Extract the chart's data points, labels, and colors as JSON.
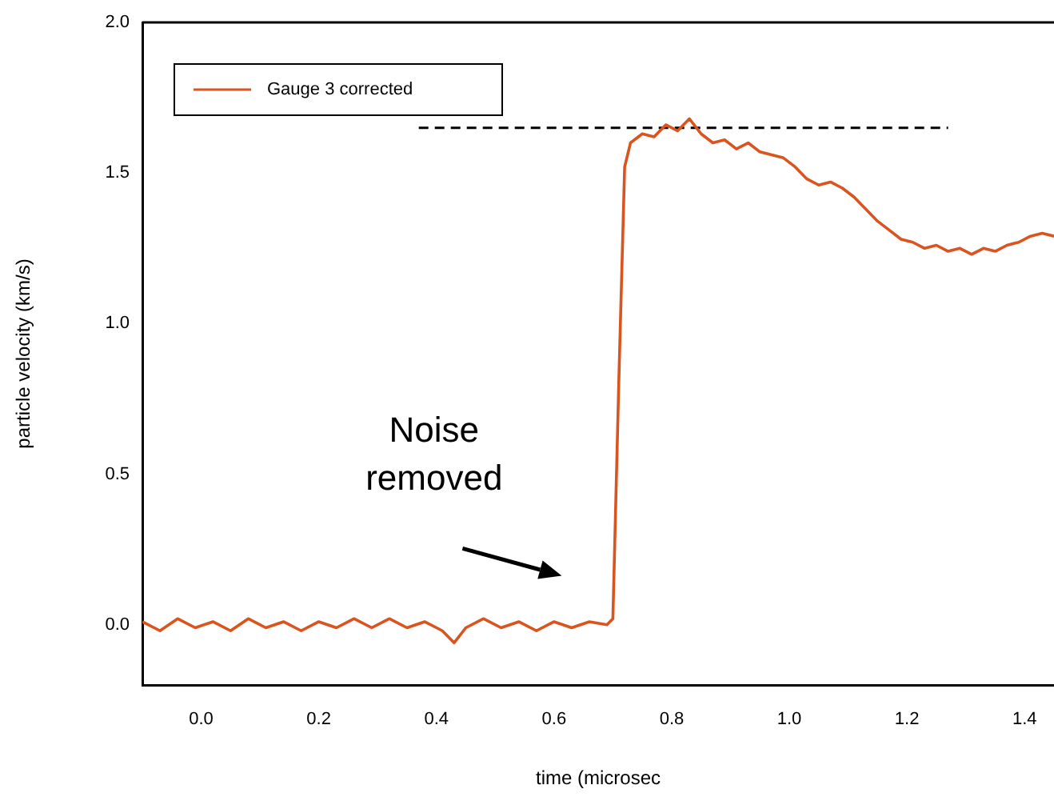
{
  "chart_data": {
    "type": "line",
    "xlabel": "time (microsec",
    "ylabel": "particle velocity (km/s)",
    "xlim": [
      -0.1,
      1.45
    ],
    "ylim": [
      -0.2,
      2.0
    ],
    "xticks": [
      {
        "value": 0,
        "label": "0.0"
      },
      {
        "value": 0.2,
        "label": "0.2"
      },
      {
        "value": 0.4,
        "label": "0.4"
      },
      {
        "value": 0.6,
        "label": "0.6"
      },
      {
        "value": 0.8,
        "label": "0.8"
      },
      {
        "value": 1,
        "label": "1.0"
      },
      {
        "value": 1.2,
        "label": "1.2"
      },
      {
        "value": 1.4,
        "label": "1.4"
      }
    ],
    "yticks": [
      {
        "value": 0,
        "label": "0.0"
      },
      {
        "value": 0.5,
        "label": "0.5"
      },
      {
        "value": 1,
        "label": "1.0"
      },
      {
        "value": 1.5,
        "label": "1.5"
      },
      {
        "value": 2,
        "label": "2.0"
      }
    ],
    "grid": false,
    "legend": "top left",
    "marker": "none",
    "series": [
      {
        "name": "Gauge 3 corrected",
        "color": "#d9541e",
        "line_style": "solid",
        "x": [
          -0.1,
          -0.07,
          -0.04,
          -0.01,
          0.02,
          0.05,
          0.08,
          0.11,
          0.14,
          0.17,
          0.2,
          0.23,
          0.26,
          0.29,
          0.32,
          0.35,
          0.38,
          0.41,
          0.43,
          0.45,
          0.48,
          0.51,
          0.54,
          0.57,
          0.6,
          0.63,
          0.66,
          0.69,
          0.7,
          0.71,
          0.72,
          0.73,
          0.75,
          0.77,
          0.79,
          0.81,
          0.83,
          0.85,
          0.87,
          0.89,
          0.91,
          0.93,
          0.95,
          0.97,
          0.99,
          1.01,
          1.03,
          1.05,
          1.07,
          1.09,
          1.11,
          1.13,
          1.15,
          1.17,
          1.19,
          1.21,
          1.23,
          1.25,
          1.27,
          1.29,
          1.31,
          1.33,
          1.35,
          1.37,
          1.39,
          1.41,
          1.43,
          1.45
        ],
        "values": [
          0.01,
          -0.02,
          0.02,
          -0.01,
          0.01,
          -0.02,
          0.02,
          -0.01,
          0.01,
          -0.02,
          0.01,
          -0.01,
          0.02,
          -0.01,
          0.02,
          -0.01,
          0.01,
          -0.02,
          -0.06,
          -0.01,
          0.02,
          -0.01,
          0.01,
          -0.02,
          0.01,
          -0.01,
          0.01,
          0.0,
          0.02,
          0.8,
          1.52,
          1.6,
          1.63,
          1.62,
          1.66,
          1.64,
          1.68,
          1.63,
          1.6,
          1.61,
          1.58,
          1.6,
          1.57,
          1.56,
          1.55,
          1.52,
          1.48,
          1.46,
          1.47,
          1.45,
          1.42,
          1.38,
          1.34,
          1.31,
          1.28,
          1.27,
          1.25,
          1.26,
          1.24,
          1.25,
          1.23,
          1.25,
          1.24,
          1.26,
          1.27,
          1.29,
          1.3,
          1.29
        ]
      },
      {
        "color": "#000000",
        "line_style": "dashed",
        "x": [
          0.37,
          1.27
        ],
        "values": [
          1.65,
          1.65
        ]
      }
    ],
    "annotations": [
      "Noise\nremoved"
    ]
  }
}
